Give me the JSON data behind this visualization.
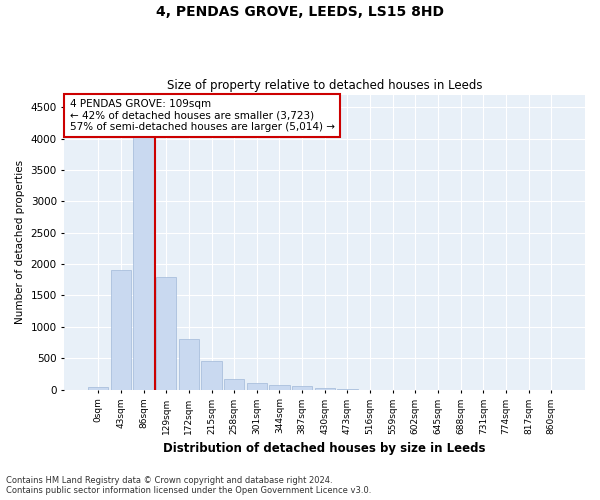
{
  "title1": "4, PENDAS GROVE, LEEDS, LS15 8HD",
  "title2": "Size of property relative to detached houses in Leeds",
  "xlabel": "Distribution of detached houses by size in Leeds",
  "ylabel": "Number of detached properties",
  "bar_color": "#c9d9f0",
  "bar_edge_color": "#a0b8d8",
  "plot_bg_color": "#e8f0f8",
  "fig_bg_color": "#ffffff",
  "grid_color": "#ffffff",
  "vline_color": "#cc0000",
  "vline_x": 2.5,
  "annotation_box_edge_color": "#cc0000",
  "annotation_text": "4 PENDAS GROVE: 109sqm\n← 42% of detached houses are smaller (3,723)\n57% of semi-detached houses are larger (5,014) →",
  "categories": [
    "0sqm",
    "43sqm",
    "86sqm",
    "129sqm",
    "172sqm",
    "215sqm",
    "258sqm",
    "301sqm",
    "344sqm",
    "387sqm",
    "430sqm",
    "473sqm",
    "516sqm",
    "559sqm",
    "602sqm",
    "645sqm",
    "688sqm",
    "731sqm",
    "774sqm",
    "817sqm",
    "860sqm"
  ],
  "bar_heights": [
    50,
    1900,
    4500,
    1800,
    800,
    450,
    175,
    110,
    70,
    55,
    30,
    10,
    0,
    0,
    0,
    0,
    0,
    0,
    0,
    0,
    0
  ],
  "ylim": [
    0,
    4700
  ],
  "yticks": [
    0,
    500,
    1000,
    1500,
    2000,
    2500,
    3000,
    3500,
    4000,
    4500
  ],
  "footnote1": "Contains HM Land Registry data © Crown copyright and database right 2024.",
  "footnote2": "Contains public sector information licensed under the Open Government Licence v3.0."
}
